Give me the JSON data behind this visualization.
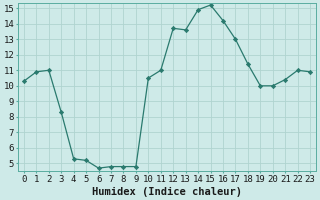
{
  "x": [
    0,
    1,
    2,
    3,
    4,
    5,
    6,
    7,
    8,
    9,
    10,
    11,
    12,
    13,
    14,
    15,
    16,
    17,
    18,
    19,
    20,
    21,
    22,
    23
  ],
  "y": [
    10.3,
    10.9,
    11.0,
    8.3,
    5.3,
    5.2,
    4.7,
    4.8,
    4.8,
    4.8,
    10.5,
    11.0,
    13.7,
    13.6,
    14.9,
    15.2,
    14.2,
    13.0,
    11.4,
    10.0,
    10.0,
    10.4,
    11.0,
    10.9
  ],
  "line_color": "#2a7a6e",
  "marker": "D",
  "marker_size": 2.2,
  "bg_color": "#ceeae8",
  "grid_color": "#b0d4d0",
  "xlabel": "Humidex (Indice chaleur)",
  "ylim_min": 5,
  "ylim_max": 15,
  "xlim_min": 0,
  "xlim_max": 23,
  "yticks": [
    5,
    6,
    7,
    8,
    9,
    10,
    11,
    12,
    13,
    14,
    15
  ],
  "xticks": [
    0,
    1,
    2,
    3,
    4,
    5,
    6,
    7,
    8,
    9,
    10,
    11,
    12,
    13,
    14,
    15,
    16,
    17,
    18,
    19,
    20,
    21,
    22,
    23
  ],
  "font_color": "#1a1a1a",
  "xlabel_fontsize": 7.5,
  "tick_fontsize": 6.5,
  "linewidth": 0.9
}
